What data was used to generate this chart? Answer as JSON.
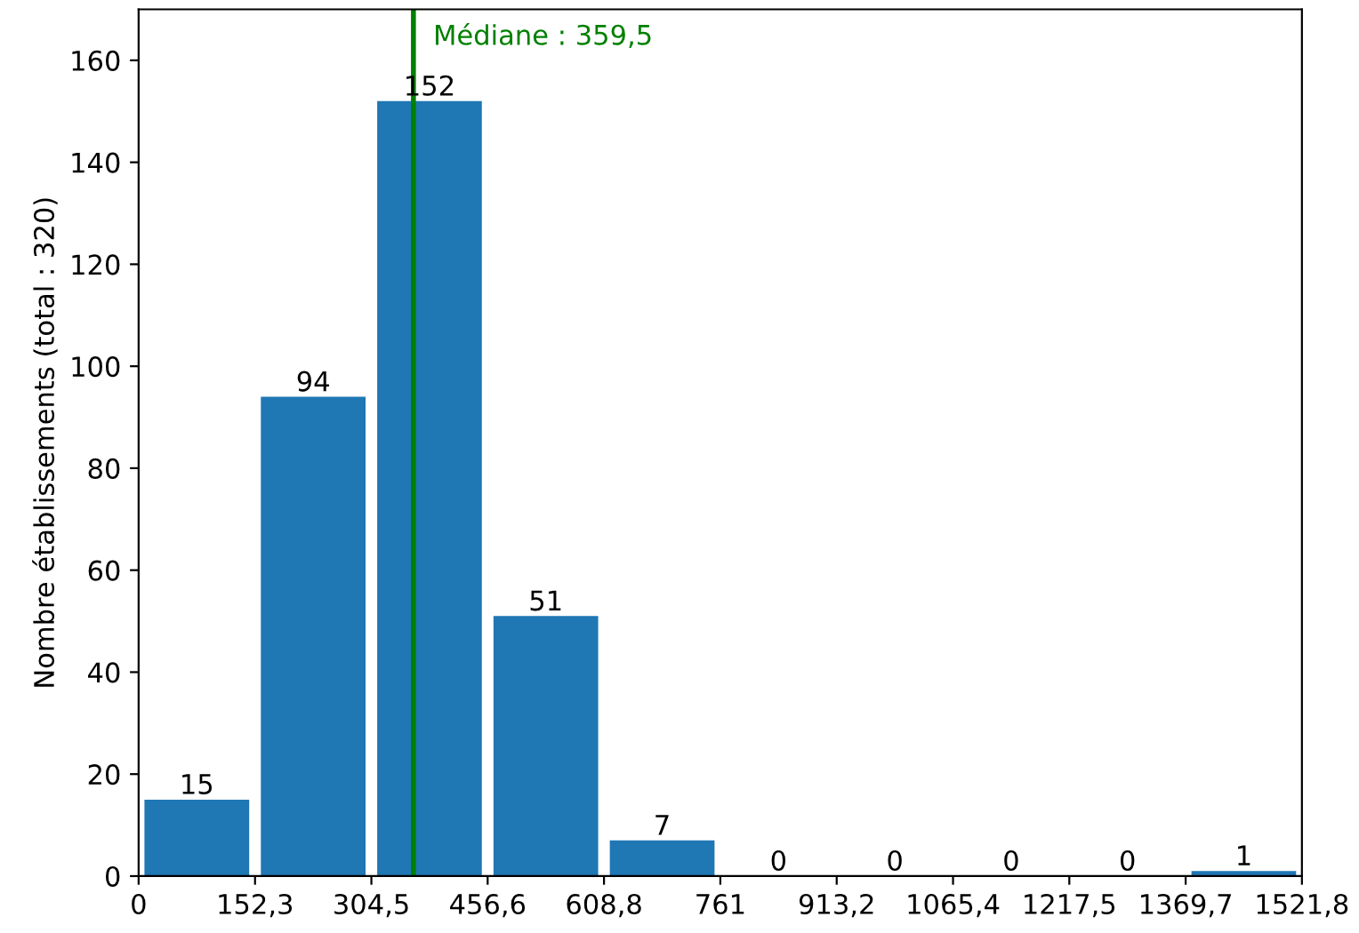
{
  "chart_data": {
    "type": "histogram",
    "ylabel": "Nombre établissements (total : 320)",
    "bins": [
      0,
      152.3,
      304.5,
      456.6,
      608.8,
      761,
      913.2,
      1065.4,
      1217.5,
      1369.7,
      1521.8
    ],
    "values": [
      15,
      94,
      152,
      51,
      7,
      0,
      0,
      0,
      0,
      1
    ],
    "color": "#1f77b4",
    "data_labels": true,
    "grid": false,
    "xlim": [
      0,
      1521.8
    ],
    "ylim": [
      0,
      170
    ],
    "xticks": [
      0,
      {
        "value": 152.3,
        "label": "152,3"
      },
      {
        "value": 304.5,
        "label": "304,5"
      },
      {
        "value": 456.6,
        "label": "456,6"
      },
      {
        "value": 608.8,
        "label": "608,8"
      },
      761,
      {
        "value": 913.2,
        "label": "913,2"
      },
      {
        "value": 1065.4,
        "label": "1065,4"
      },
      {
        "value": 1217.5,
        "label": "1217,5"
      },
      {
        "value": 1369.7,
        "label": "1369,7"
      },
      {
        "value": 1521.8,
        "label": "1521,8"
      }
    ],
    "yticks": [
      0,
      20,
      40,
      60,
      80,
      100,
      120,
      140,
      160
    ],
    "ref_lines": [
      {
        "axis": "x",
        "value": 359.5,
        "label": "Médiane : 359,5",
        "color": "#008000",
        "line_style": "solid"
      }
    ]
  }
}
